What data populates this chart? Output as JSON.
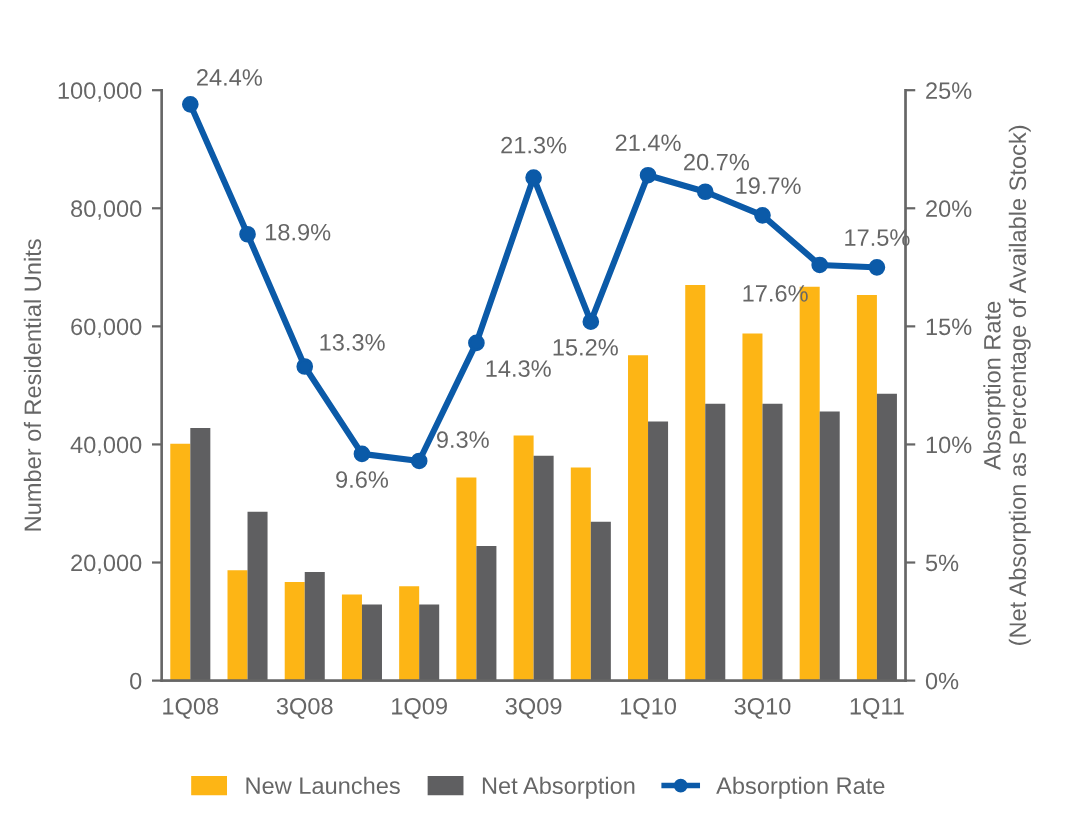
{
  "chart_data": {
    "type": "bar",
    "ylabel": "Number of Residential Units",
    "y2label": "Absorption Rate\n(Net Absorption as Percentage of Available Stock)",
    "categories": [
      "1Q08",
      null,
      "3Q08",
      null,
      "1Q09",
      null,
      "3Q09",
      null,
      "1Q10",
      null,
      "3Q10",
      null,
      "1Q11"
    ],
    "series": [
      {
        "name": "New Launches",
        "type": "bar",
        "color": "#fdb515",
        "values": [
          40100,
          18700,
          16700,
          14600,
          16000,
          34400,
          41500,
          36100,
          55100,
          67000,
          58800,
          66700,
          65300
        ]
      },
      {
        "name": "Net Absorption",
        "type": "bar",
        "color": "#5f5f61",
        "values": [
          42800,
          28600,
          18400,
          12900,
          12900,
          22800,
          38100,
          26900,
          43900,
          46900,
          46900,
          45600,
          48600
        ]
      },
      {
        "name": "Absorption Rate",
        "type": "line",
        "axis": "y2",
        "color": "#0b5aa8",
        "marker": "circle",
        "data_labels": true,
        "value_labels": [
          "24.4%",
          "18.9%",
          "13.3%",
          "9.6%",
          "9.3%",
          "14.3%",
          "21.3%",
          "15.2%",
          "21.4%",
          "20.7%",
          "19.7%",
          "17.6%",
          "17.5%"
        ],
        "values": [
          24.4,
          18.9,
          13.3,
          9.6,
          9.3,
          14.3,
          21.3,
          15.2,
          21.4,
          20.7,
          19.7,
          17.6,
          17.5
        ]
      }
    ],
    "ylim": [
      0,
      100000
    ],
    "yticks": [
      {
        "value": 0,
        "label": "0"
      },
      {
        "value": 20000,
        "label": "20,000"
      },
      {
        "value": 40000,
        "label": "40,000"
      },
      {
        "value": 60000,
        "label": "60,000"
      },
      {
        "value": 80000,
        "label": "80,000"
      },
      {
        "value": 100000,
        "label": "100,000"
      }
    ],
    "y2lim": [
      0,
      25
    ],
    "y2ticks": [
      {
        "value": 0,
        "label": "0%"
      },
      {
        "value": 5,
        "label": "5%"
      },
      {
        "value": 10,
        "label": "10%"
      },
      {
        "value": 15,
        "label": "15%"
      },
      {
        "value": 20,
        "label": "20%"
      },
      {
        "value": 25,
        "label": "25%"
      }
    ],
    "grid": false,
    "legend": "bottom"
  }
}
